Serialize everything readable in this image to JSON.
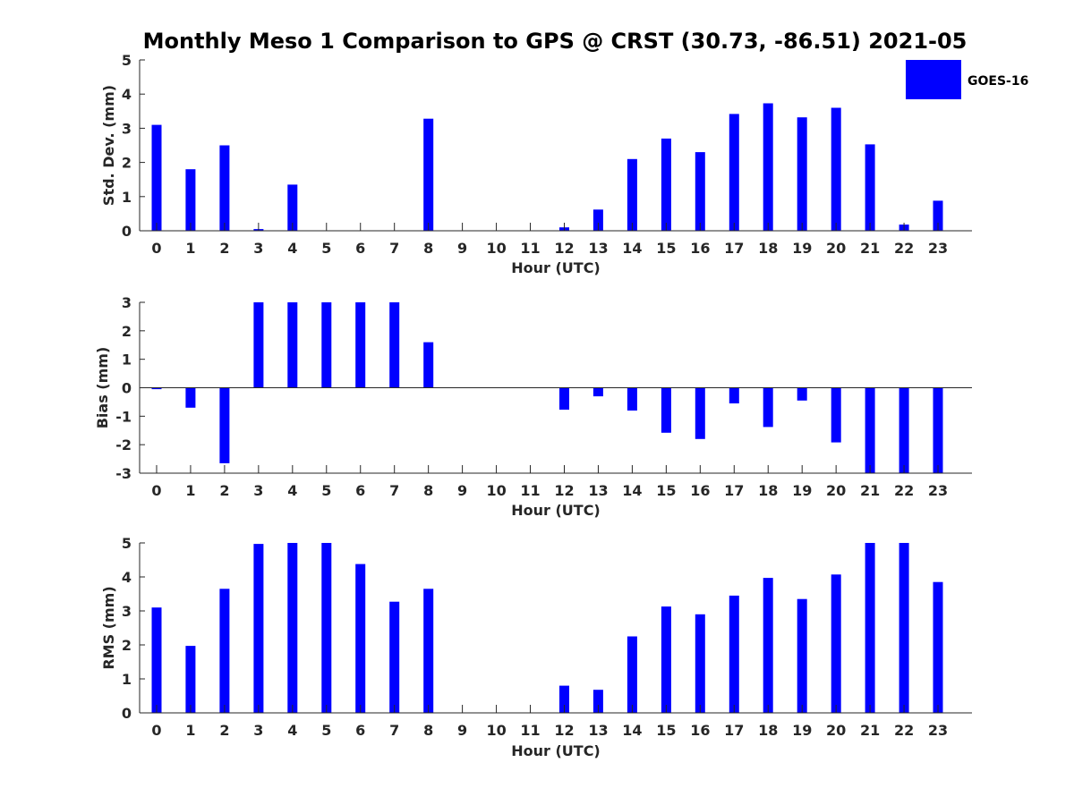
{
  "figure": {
    "title": "Monthly Meso 1 Comparison to GPS @ CRST (30.73, -86.51) 2021-05"
  },
  "legend": {
    "position": "top-right",
    "entries": [
      {
        "label": "GOES-16",
        "color": "#0000ff"
      }
    ]
  },
  "colors": {
    "bar": "#0000ff",
    "axis": "#262626",
    "background": "#ffffff"
  },
  "chart_data": [
    {
      "type": "bar",
      "xlabel": "Hour (UTC)",
      "ylabel": "Std. Dev. (mm)",
      "categories": [
        "0",
        "1",
        "2",
        "3",
        "4",
        "5",
        "6",
        "7",
        "8",
        "9",
        "10",
        "11",
        "12",
        "13",
        "14",
        "15",
        "16",
        "17",
        "18",
        "19",
        "20",
        "21",
        "22",
        "23"
      ],
      "values": [
        3.1,
        1.8,
        2.5,
        0.05,
        1.35,
        null,
        null,
        null,
        3.28,
        null,
        null,
        null,
        0.1,
        0.62,
        2.1,
        2.7,
        2.3,
        3.42,
        3.73,
        3.32,
        3.6,
        2.53,
        0.18,
        0.88
      ],
      "ylim": [
        0,
        5
      ],
      "yticks": [
        0,
        1,
        2,
        3,
        4,
        5
      ],
      "series": [
        {
          "name": "GOES-16"
        }
      ],
      "grid": false
    },
    {
      "type": "bar",
      "xlabel": "Hour (UTC)",
      "ylabel": "Bias (mm)",
      "categories": [
        "0",
        "1",
        "2",
        "3",
        "4",
        "5",
        "6",
        "7",
        "8",
        "9",
        "10",
        "11",
        "12",
        "13",
        "14",
        "15",
        "16",
        "17",
        "18",
        "19",
        "20",
        "21",
        "22",
        "23"
      ],
      "values": [
        -0.05,
        -0.7,
        -2.65,
        3.0,
        3.0,
        3.0,
        3.0,
        3.0,
        1.6,
        null,
        null,
        null,
        -0.77,
        -0.3,
        -0.8,
        -1.58,
        -1.8,
        -0.55,
        -1.38,
        -0.45,
        -1.92,
        -3.0,
        -3.0,
        -3.0
      ],
      "ylim": [
        -3,
        3
      ],
      "yticks": [
        -3,
        -2,
        -1,
        0,
        1,
        2,
        3
      ],
      "grid": false
    },
    {
      "type": "bar",
      "xlabel": "Hour (UTC)",
      "ylabel": "RMS (mm)",
      "categories": [
        "0",
        "1",
        "2",
        "3",
        "4",
        "5",
        "6",
        "7",
        "8",
        "9",
        "10",
        "11",
        "12",
        "13",
        "14",
        "15",
        "16",
        "17",
        "18",
        "19",
        "20",
        "21",
        "22",
        "23"
      ],
      "values": [
        3.1,
        1.97,
        3.65,
        4.97,
        5.0,
        5.0,
        4.38,
        3.27,
        3.65,
        null,
        null,
        null,
        0.8,
        0.68,
        2.25,
        3.13,
        2.9,
        3.45,
        3.97,
        3.35,
        4.07,
        5.0,
        5.0,
        3.85
      ],
      "ylim": [
        0,
        5
      ],
      "yticks": [
        0,
        1,
        2,
        3,
        4,
        5
      ],
      "grid": false
    }
  ]
}
